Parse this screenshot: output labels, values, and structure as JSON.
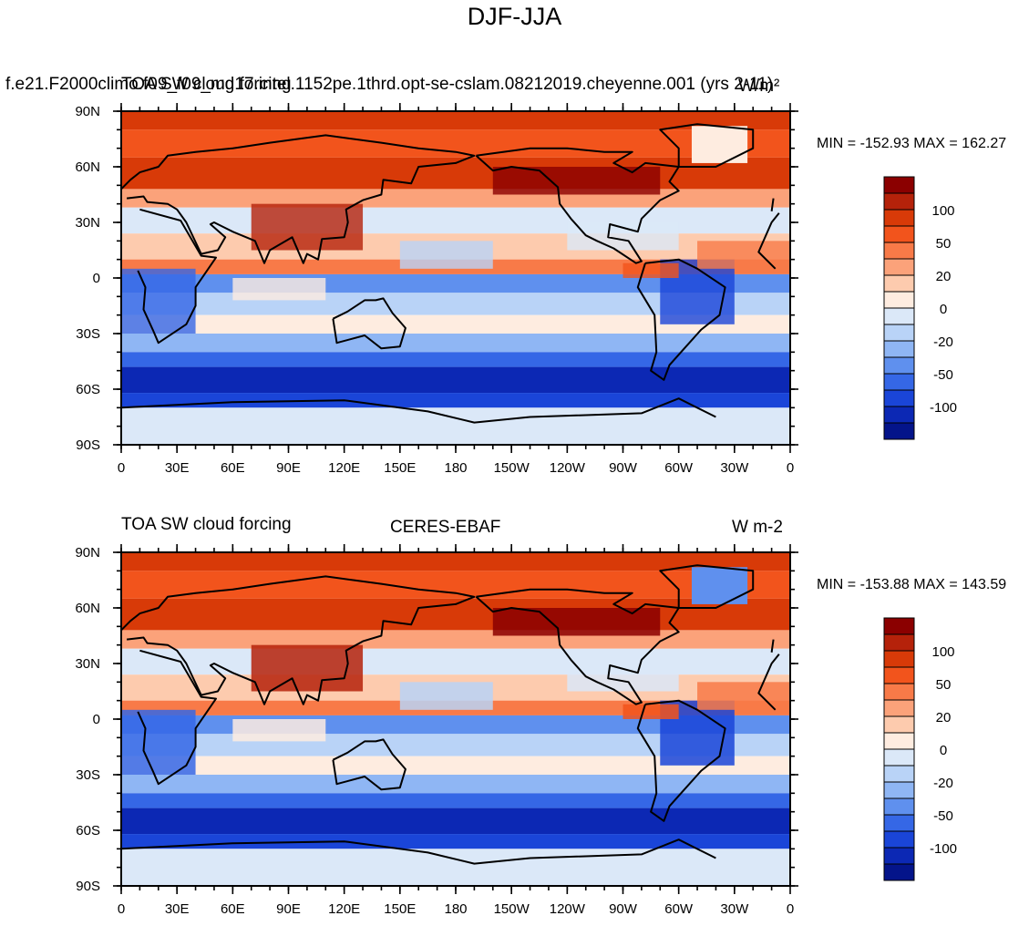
{
  "main_title": "DJF-JJA",
  "x_ticks": [
    "0",
    "30E",
    "60E",
    "90E",
    "120E",
    "150E",
    "180",
    "150W",
    "120W",
    "90W",
    "60W",
    "30W",
    "0"
  ],
  "y_ticks": [
    "90N",
    "60N",
    "30N",
    "0",
    "30S",
    "60S",
    "90S"
  ],
  "colorbar_labels": [
    "100",
    "50",
    "20",
    "0",
    "-20",
    "-50",
    "-100"
  ],
  "colorbar_colors": [
    "#8b0000",
    "#b5220a",
    "#d83a08",
    "#f2541c",
    "#f87a48",
    "#fba27a",
    "#fdcbae",
    "#feece0",
    "#dbe8f8",
    "#b9d3f7",
    "#8fb6f4",
    "#5f90ee",
    "#3567e6",
    "#1a45d8",
    "#0c28b4",
    "#04148a"
  ],
  "panels": [
    {
      "left_title": "f.e21.F2000climo.f09_f09_mg17.intel.1152pe.1thrd.opt-se-cslam.08212019.cheyenne.001 (yrs 2-11)",
      "overlap_title": "TOA SW cloud forcing",
      "center_title": "",
      "units": "W/m²",
      "stats": "MIN = -152.93 MAX = 162.27"
    },
    {
      "left_title": "TOA SW cloud forcing",
      "overlap_title": "",
      "center_title": "CERES-EBAF",
      "units": "W m-2",
      "stats": "MIN = -153.88 MAX = 143.59"
    }
  ]
}
